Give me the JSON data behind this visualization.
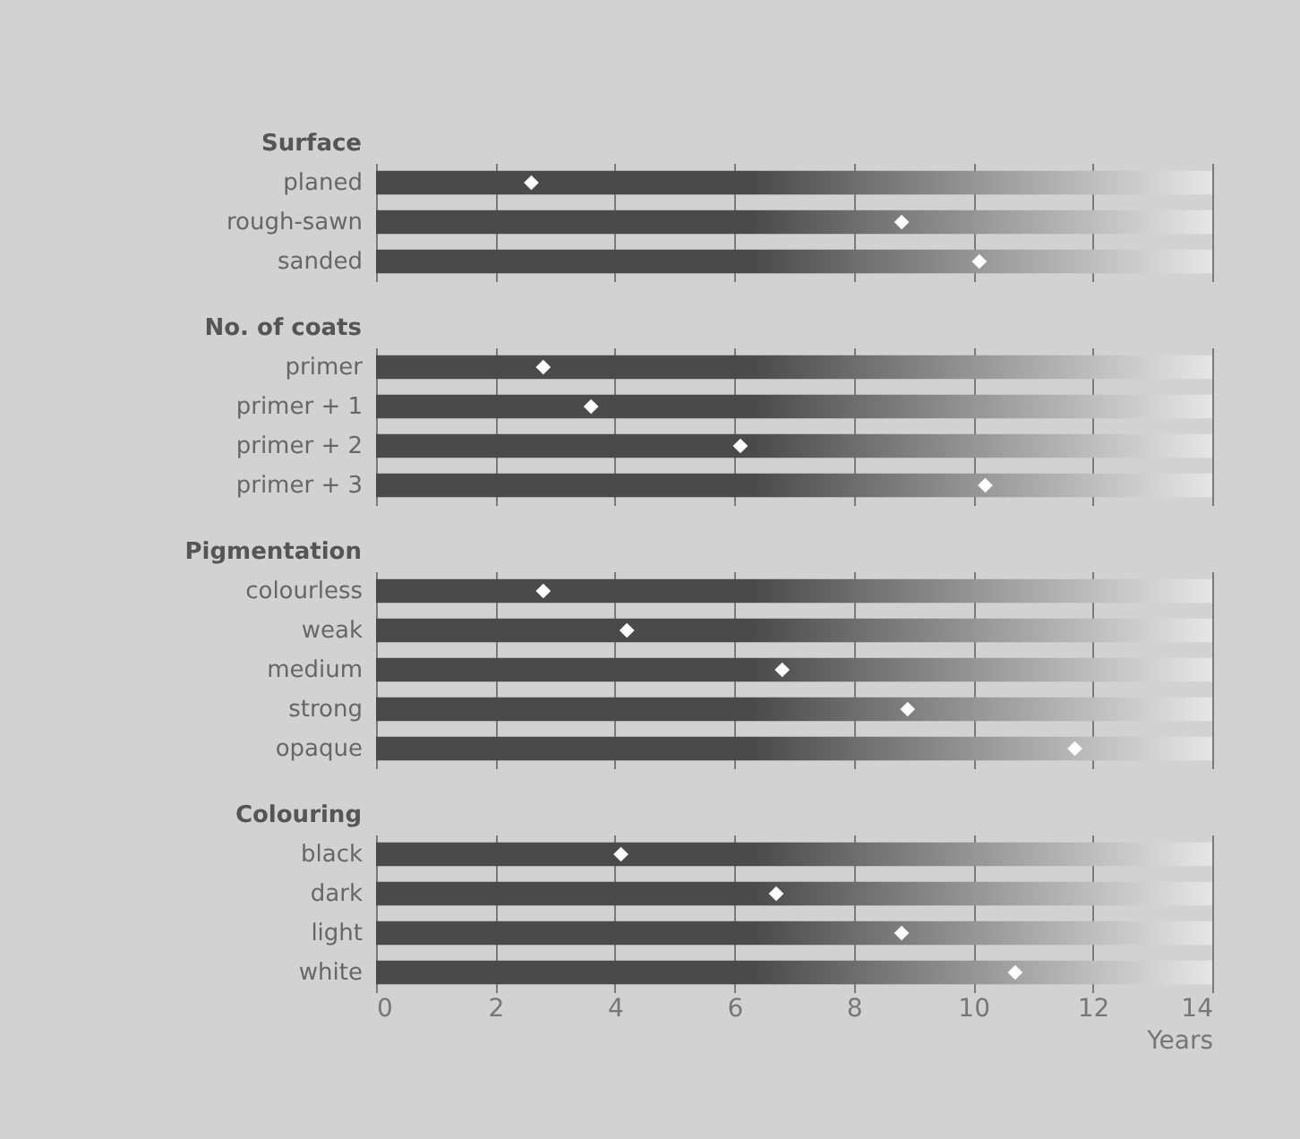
{
  "chart_data": [
    {
      "type": "bar",
      "title": "Surface",
      "orientation": "horizontal",
      "categories": [
        "planed",
        "rough-sawn",
        "sanded"
      ],
      "series": [
        {
          "type": "bar",
          "color": "#4a4a4a",
          "values": [
            14,
            14,
            14
          ]
        },
        {
          "type": "scatter",
          "color": "#ffffff",
          "values": [
            2.6,
            8.8,
            10.1
          ]
        }
      ],
      "marker": "diamond",
      "xlim": [
        0,
        14
      ],
      "xticks": [
        0,
        2,
        4,
        6,
        8,
        10,
        12,
        14
      ],
      "grid": "x",
      "tick_labels": "y"
    },
    {
      "type": "bar",
      "title": "No. of coats",
      "orientation": "horizontal",
      "categories": [
        "primer",
        "primer + 1",
        "primer + 2",
        "primer + 3"
      ],
      "series": [
        {
          "type": "bar",
          "color": "#4a4a4a",
          "values": [
            14,
            14,
            14,
            14
          ]
        },
        {
          "type": "scatter",
          "color": "#ffffff",
          "values": [
            2.8,
            3.6,
            6.1,
            10.2
          ]
        }
      ],
      "marker": "diamond",
      "xlim": [
        0,
        14
      ],
      "xticks": [
        0,
        2,
        4,
        6,
        8,
        10,
        12,
        14
      ],
      "grid": "x",
      "tick_labels": "y"
    },
    {
      "type": "bar",
      "title": "Pigmentation",
      "orientation": "horizontal",
      "categories": [
        "colourless",
        "weak",
        "medium",
        "strong",
        "opaque"
      ],
      "series": [
        {
          "type": "bar",
          "color": "#4a4a4a",
          "values": [
            14,
            14,
            14,
            14,
            14
          ]
        },
        {
          "type": "scatter",
          "color": "#ffffff",
          "values": [
            2.8,
            4.2,
            6.8,
            8.9,
            11.7
          ]
        }
      ],
      "marker": "diamond",
      "xlim": [
        0,
        14
      ],
      "xticks": [
        0,
        2,
        4,
        6,
        8,
        10,
        12,
        14
      ],
      "grid": "x",
      "tick_labels": "y"
    },
    {
      "type": "bar",
      "title": "Colouring",
      "xlabel": "Years",
      "orientation": "horizontal",
      "categories": [
        "black",
        "dark",
        "light",
        "white"
      ],
      "series": [
        {
          "type": "bar",
          "color": "#4a4a4a",
          "values": [
            14,
            14,
            14,
            14
          ]
        },
        {
          "type": "scatter",
          "color": "#ffffff",
          "values": [
            4.1,
            6.7,
            8.8,
            10.7
          ]
        }
      ],
      "marker": "diamond",
      "xlim": [
        0,
        14
      ],
      "xticks": [
        0,
        2,
        4,
        6,
        8,
        10,
        12,
        14
      ],
      "grid": "x"
    }
  ]
}
